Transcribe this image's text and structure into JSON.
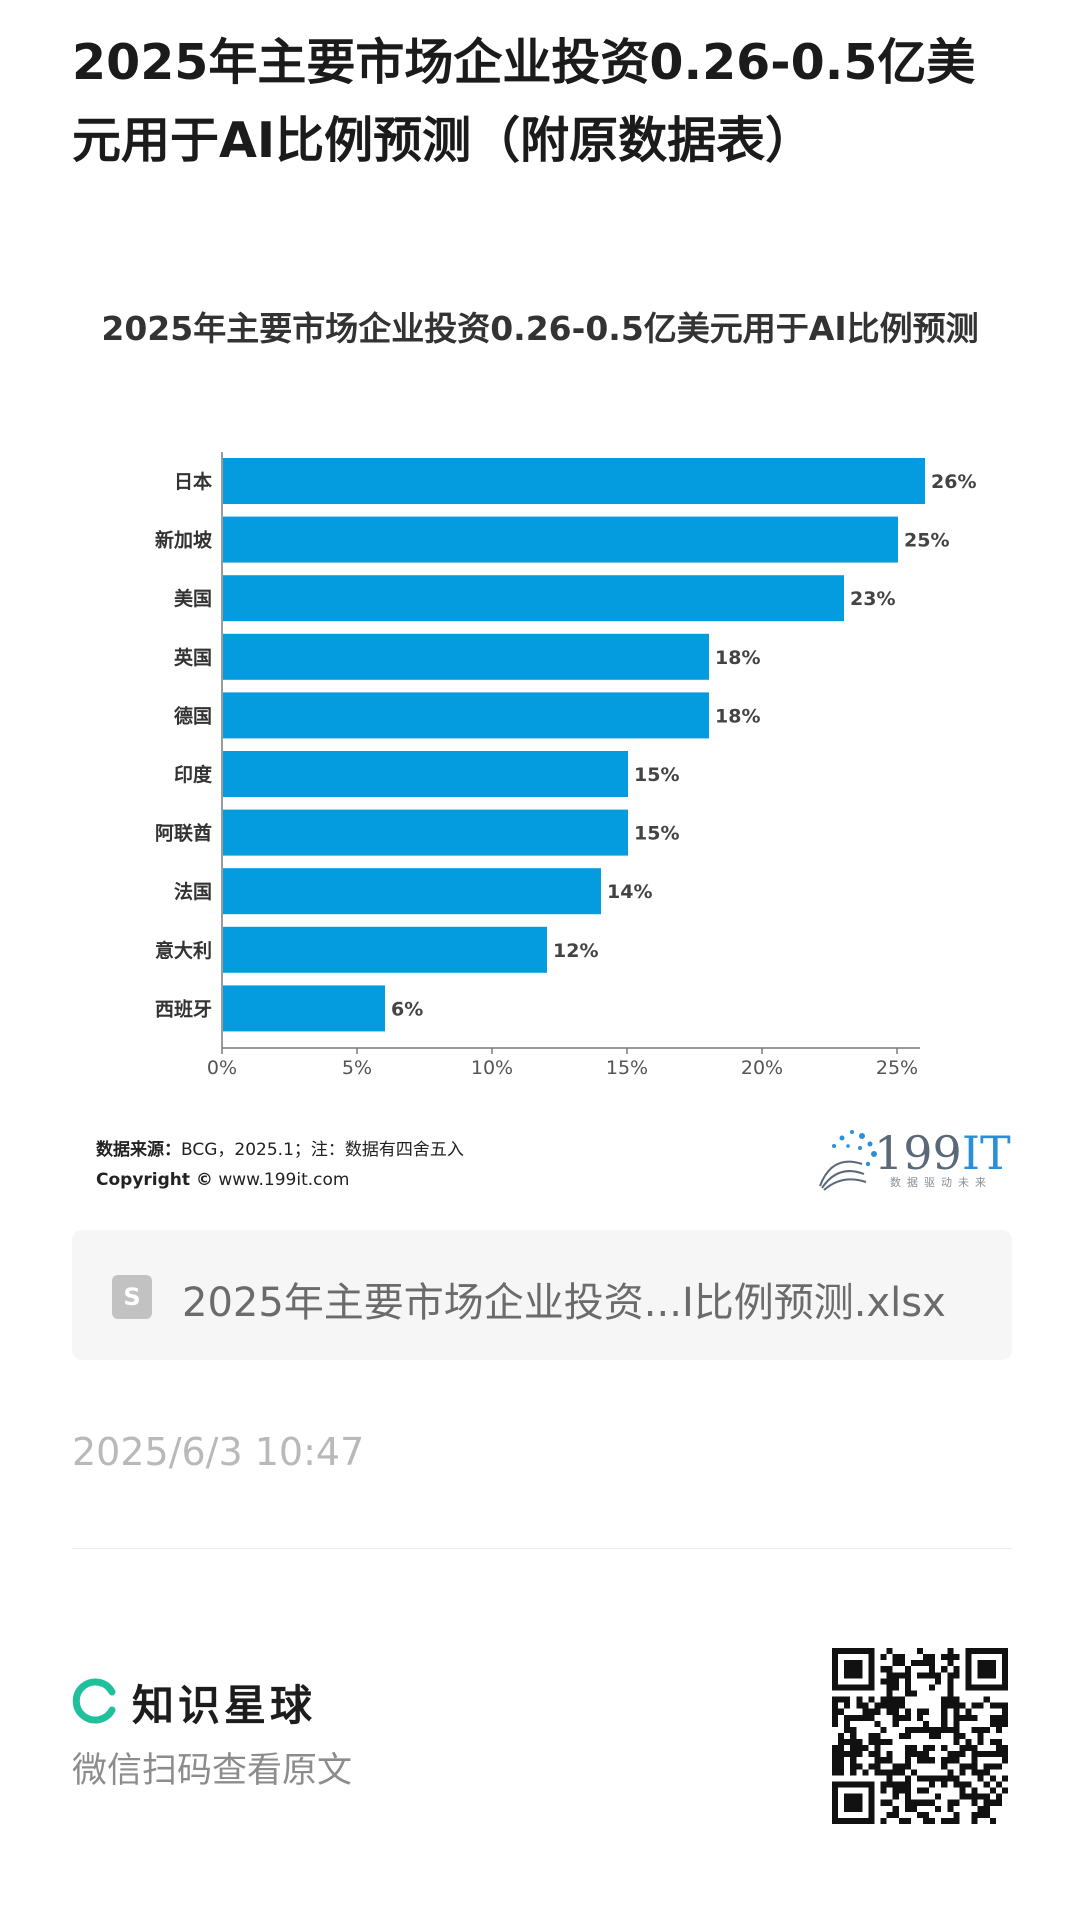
{
  "post": {
    "title": "2025年主要市场企业投资0.26-0.5亿美元用于AI比例预测（附原数据表）"
  },
  "chart_data": {
    "type": "bar",
    "orientation": "horizontal",
    "title": "2025年主要市场企业投资0.26-0.5亿美元用于AI比例预测",
    "categories": [
      "日本",
      "新加坡",
      "美国",
      "英国",
      "德国",
      "印度",
      "阿联酋",
      "法国",
      "意大利",
      "西班牙"
    ],
    "values": [
      26,
      25,
      23,
      18,
      18,
      15,
      15,
      14,
      12,
      6
    ],
    "value_labels": [
      "26%",
      "25%",
      "23%",
      "18%",
      "18%",
      "15%",
      "15%",
      "14%",
      "12%",
      "6%"
    ],
    "xlim": [
      0,
      26
    ],
    "x_ticks": [
      "0%",
      "5%",
      "10%",
      "15%",
      "20%",
      "25%"
    ],
    "x_tick_values": [
      0,
      5,
      10,
      15,
      20,
      25
    ],
    "xlabel": "",
    "ylabel": "",
    "grid": false,
    "bar_color": "#049cdf"
  },
  "source": {
    "label": "数据来源：",
    "text": "BCG，2025.1；注：数据有四舍五入",
    "copyright_label": "Copyright ©",
    "copyright_site": "www.199it.com"
  },
  "brand": {
    "number": "199",
    "suffix": "IT",
    "tagline": "数据驱动未来"
  },
  "attachment": {
    "icon": "spreadsheet-file-icon",
    "icon_letter": "S",
    "filename": "2025年主要市场企业投资...I比例预测.xlsx"
  },
  "timestamp": "2025/6/3 10:47",
  "footer": {
    "app_name": "知识星球",
    "hint": "微信扫码查看原文",
    "logo_color": "#21c09c"
  }
}
